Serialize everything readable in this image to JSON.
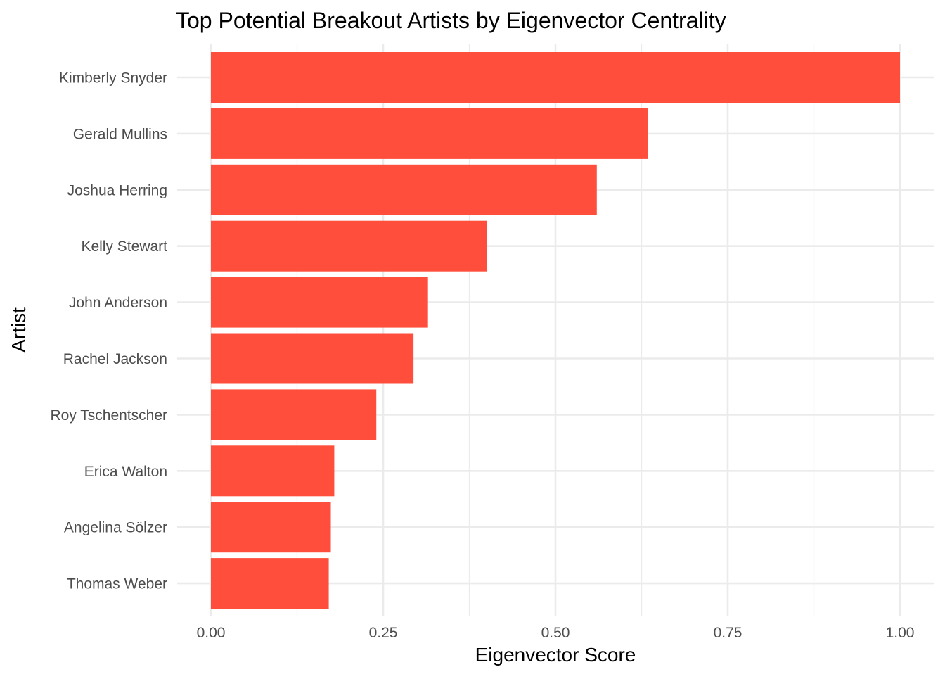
{
  "chart_data": {
    "type": "bar",
    "orientation": "horizontal",
    "title": "Top Potential Breakout Artists by Eigenvector Centrality",
    "xlabel": "Eigenvector Score",
    "ylabel": "Artist",
    "categories": [
      "Kimberly Snyder",
      "Gerald Mullins",
      "Joshua Herring",
      "Kelly Stewart",
      "John Anderson",
      "Rachel Jackson",
      "Roy Tschentscher",
      "Erica Walton",
      "Angelina Sölzer",
      "Thomas Weber"
    ],
    "values": [
      1.0,
      0.634,
      0.56,
      0.401,
      0.315,
      0.294,
      0.24,
      0.179,
      0.174,
      0.171
    ],
    "xlim": [
      0,
      1.0
    ],
    "xticks": [
      0,
      0.25,
      0.5,
      0.75,
      1.0
    ],
    "xtick_labels": [
      "0.00",
      "0.25",
      "0.50",
      "0.75",
      "1.00"
    ],
    "bar_color": "#FF4F3C",
    "grid": true,
    "legend": "none"
  }
}
